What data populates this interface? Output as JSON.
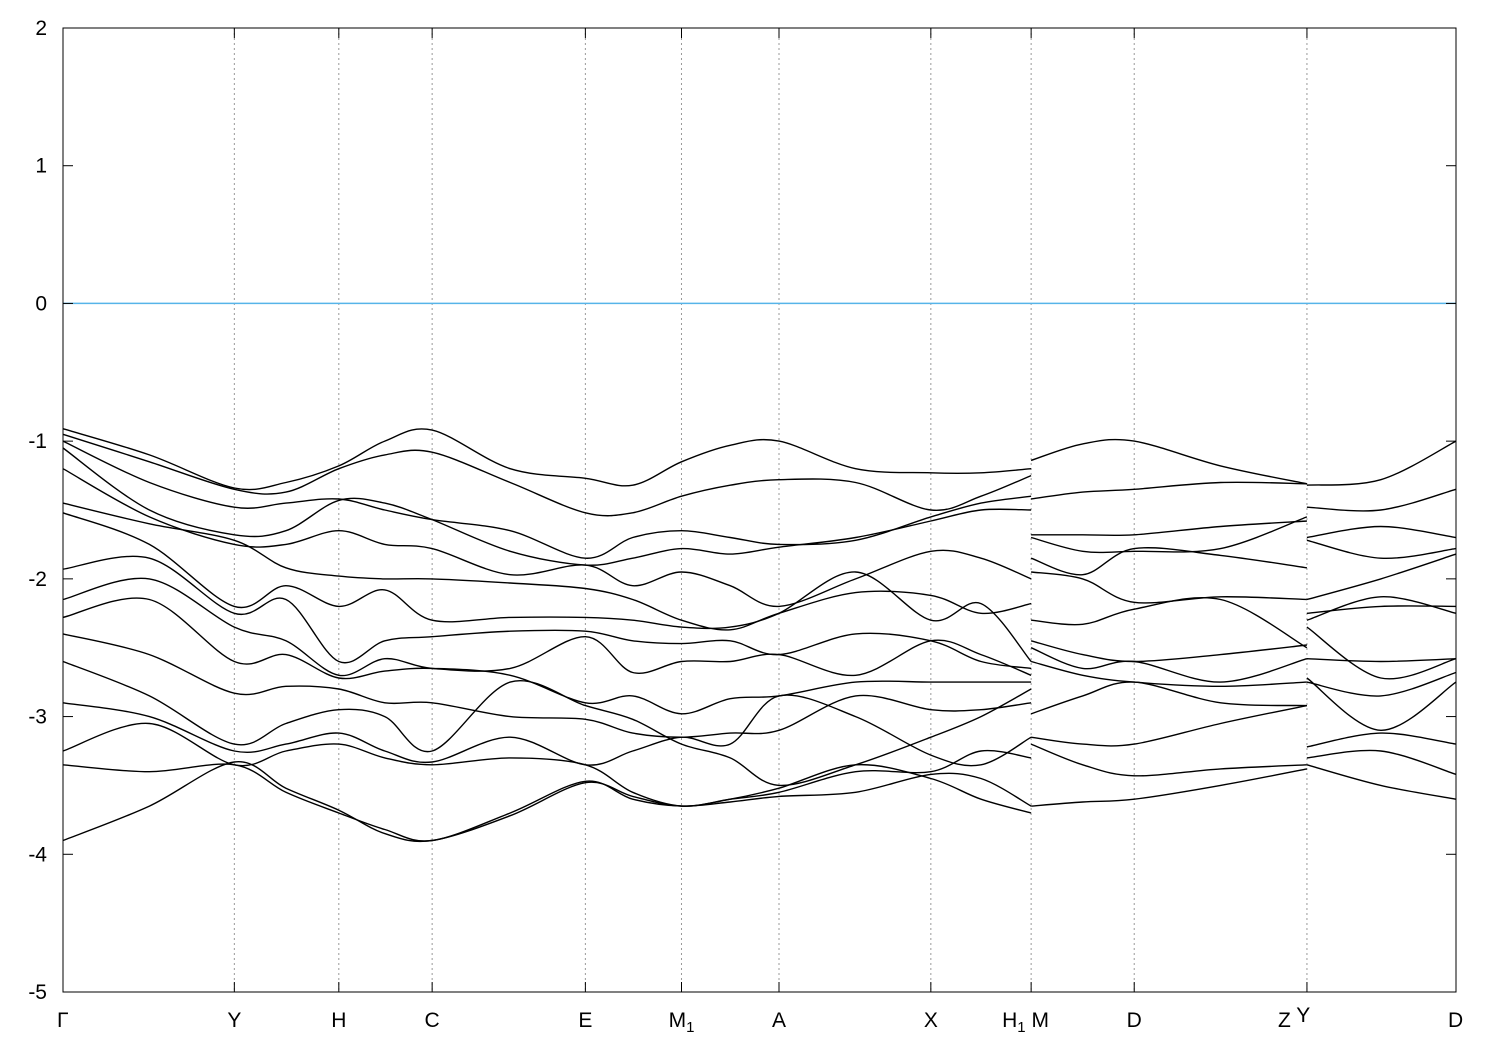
{
  "chart_data": {
    "type": "line",
    "title": "",
    "xlabel": "",
    "ylabel": "",
    "ylim": [
      -5,
      2
    ],
    "xlim": [
      0,
      1.0
    ],
    "yticks": [
      2,
      1,
      0,
      -1,
      -2,
      -3,
      -4,
      -5
    ],
    "grid": "vertical dotted lines at high-symmetry points",
    "reference_line": {
      "y": 0,
      "color": "#56b4e9"
    },
    "band_color": "#000000",
    "xticks": [
      {
        "k": 0.0,
        "label": "Γ",
        "sub": ""
      },
      {
        "k": 0.123,
        "label": "Y",
        "sub": ""
      },
      {
        "k": 0.198,
        "label": "H",
        "sub": ""
      },
      {
        "k": 0.265,
        "label": "C",
        "sub": ""
      },
      {
        "k": 0.375,
        "label": "E",
        "sub": ""
      },
      {
        "k": 0.444,
        "label": "M",
        "sub": "1"
      },
      {
        "k": 0.514,
        "label": "A",
        "sub": ""
      },
      {
        "k": 0.623,
        "label": "X",
        "sub": ""
      },
      {
        "k": 0.695,
        "label": "H",
        "sub": "1",
        "extra": "M"
      },
      {
        "k": 0.769,
        "label": "D",
        "sub": ""
      },
      {
        "k": 0.893,
        "label": "Z",
        "sub": "",
        "extra": "Y"
      },
      {
        "k": 1.0,
        "label": "D",
        "sub": ""
      }
    ],
    "segments": [
      {
        "k": [
          0,
          0.062,
          0.123,
          0.16,
          0.198,
          0.231,
          0.265,
          0.321,
          0.375,
          0.409,
          0.444,
          0.479,
          0.514,
          0.569,
          0.623,
          0.659,
          0.695
        ],
        "bands": [
          [
            -0.91,
            -1.1,
            -1.34,
            -1.3,
            -1.18,
            -1.0,
            -0.92,
            -1.2,
            -1.27,
            -1.32,
            -1.15,
            -1.03,
            -1.0,
            -1.2,
            -1.23,
            -1.23,
            -1.2
          ],
          [
            -0.95,
            -1.15,
            -1.35,
            -1.37,
            -1.2,
            -1.1,
            -1.08,
            -1.3,
            -1.52,
            -1.52,
            -1.4,
            -1.32,
            -1.28,
            -1.3,
            -1.5,
            -1.4,
            -1.25
          ],
          [
            -1.0,
            -1.3,
            -1.48,
            -1.45,
            -1.42,
            -1.5,
            -1.57,
            -1.65,
            -1.85,
            -1.7,
            -1.65,
            -1.7,
            -1.75,
            -1.72,
            -1.55,
            -1.45,
            -1.4
          ],
          [
            -1.05,
            -1.5,
            -1.68,
            -1.65,
            -1.43,
            -1.45,
            -1.57,
            -1.8,
            -1.9,
            -1.85,
            -1.78,
            -1.82,
            -1.77,
            -1.7,
            -1.58,
            -1.5,
            -1.5
          ],
          [
            -1.2,
            -1.55,
            -1.75,
            -1.75,
            -1.65,
            -1.75,
            -1.78,
            -1.97,
            -1.9,
            -2.05,
            -1.95,
            -2.05,
            -2.2,
            -2.0,
            -1.8,
            -1.85,
            -2.0
          ],
          [
            -1.45,
            -1.6,
            -1.72,
            -1.92,
            -1.98,
            -2.0,
            -2.0,
            -2.03,
            -2.07,
            -2.15,
            -2.3,
            -2.37,
            -2.25,
            -2.1,
            -2.12,
            -2.25,
            -2.18
          ],
          [
            -1.52,
            -1.75,
            -2.2,
            -2.05,
            -2.2,
            -2.08,
            -2.3,
            -2.28,
            -2.28,
            -2.3,
            -2.35,
            -2.35,
            -2.25,
            -1.95,
            -2.3,
            -2.18,
            -2.6
          ],
          [
            -1.93,
            -1.85,
            -2.25,
            -2.15,
            -2.6,
            -2.45,
            -2.42,
            -2.38,
            -2.38,
            -2.45,
            -2.47,
            -2.45,
            -2.55,
            -2.4,
            -2.45,
            -2.6,
            -2.65
          ],
          [
            -2.15,
            -2.0,
            -2.35,
            -2.45,
            -2.7,
            -2.58,
            -2.65,
            -2.65,
            -2.42,
            -2.68,
            -2.6,
            -2.6,
            -2.55,
            -2.7,
            -2.45,
            -2.55,
            -2.7
          ],
          [
            -2.28,
            -2.15,
            -2.6,
            -2.55,
            -2.72,
            -2.67,
            -2.65,
            -2.7,
            -2.9,
            -2.85,
            -2.98,
            -2.87,
            -2.85,
            -2.75,
            -2.75,
            -2.75,
            -2.75
          ],
          [
            -2.4,
            -2.55,
            -2.83,
            -2.78,
            -2.8,
            -2.9,
            -2.9,
            -3.0,
            -3.02,
            -3.12,
            -3.15,
            -3.12,
            -3.1,
            -2.85,
            -2.95,
            -2.95,
            -2.9
          ],
          [
            -2.6,
            -2.85,
            -3.2,
            -3.05,
            -2.95,
            -3.0,
            -3.25,
            -2.75,
            -2.92,
            -3.02,
            -3.2,
            -3.3,
            -3.5,
            -3.35,
            -3.15,
            -3.0,
            -2.8
          ],
          [
            -2.9,
            -3.0,
            -3.25,
            -3.2,
            -3.12,
            -3.25,
            -3.33,
            -3.15,
            -3.35,
            -3.25,
            -3.15,
            -3.2,
            -2.85,
            -3.0,
            -3.28,
            -3.35,
            -3.15
          ],
          [
            -3.25,
            -3.05,
            -3.35,
            -3.25,
            -3.2,
            -3.3,
            -3.35,
            -3.3,
            -3.35,
            -3.55,
            -3.65,
            -3.6,
            -3.55,
            -3.4,
            -3.4,
            -3.25,
            -3.3
          ],
          [
            -3.35,
            -3.4,
            -3.35,
            -3.55,
            -3.7,
            -3.82,
            -3.9,
            -3.7,
            -3.47,
            -3.6,
            -3.65,
            -3.62,
            -3.58,
            -3.55,
            -3.42,
            -3.45,
            -3.65
          ],
          [
            -3.9,
            -3.65,
            -3.33,
            -3.52,
            -3.68,
            -3.85,
            -3.9,
            -3.72,
            -3.48,
            -3.58,
            -3.65,
            -3.6,
            -3.52,
            -3.35,
            -3.45,
            -3.6,
            -3.7
          ]
        ]
      },
      {
        "k": [
          0.695,
          0.732,
          0.769,
          0.831,
          0.893
        ],
        "bands": [
          [
            -1.14,
            -1.02,
            -1.0,
            -1.18,
            -1.31
          ],
          [
            -1.42,
            -1.37,
            -1.35,
            -1.3,
            -1.31
          ],
          [
            -1.68,
            -1.68,
            -1.68,
            -1.62,
            -1.58
          ],
          [
            -1.7,
            -1.8,
            -1.8,
            -1.78,
            -1.55
          ],
          [
            -1.85,
            -1.97,
            -1.78,
            -1.83,
            -1.92
          ],
          [
            -1.95,
            -2.0,
            -2.17,
            -2.13,
            -2.15
          ],
          [
            -2.3,
            -2.33,
            -2.22,
            -2.15,
            -2.5
          ],
          [
            -2.45,
            -2.55,
            -2.6,
            -2.55,
            -2.48
          ],
          [
            -2.5,
            -2.65,
            -2.6,
            -2.75,
            -2.58
          ],
          [
            -2.6,
            -2.7,
            -2.75,
            -2.78,
            -2.75
          ],
          [
            -2.98,
            -2.85,
            -2.75,
            -2.9,
            -2.92
          ],
          [
            -3.15,
            -3.2,
            -3.2,
            -3.05,
            -2.92
          ],
          [
            -3.2,
            -3.35,
            -3.43,
            -3.38,
            -3.35
          ],
          [
            -3.65,
            -3.62,
            -3.6,
            -3.5,
            -3.38
          ]
        ]
      },
      {
        "k": [
          0.893,
          0.946,
          1.0
        ],
        "bands": [
          [
            -1.32,
            -1.28,
            -1.0
          ],
          [
            -1.48,
            -1.5,
            -1.35
          ],
          [
            -1.7,
            -1.62,
            -1.7
          ],
          [
            -1.72,
            -1.85,
            -1.78
          ],
          [
            -2.15,
            -2.0,
            -1.82
          ],
          [
            -2.25,
            -2.2,
            -2.2
          ],
          [
            -2.3,
            -2.13,
            -2.25
          ],
          [
            -2.35,
            -2.72,
            -2.58
          ],
          [
            -2.58,
            -2.6,
            -2.58
          ],
          [
            -2.75,
            -2.85,
            -2.68
          ],
          [
            -2.72,
            -3.1,
            -2.75
          ],
          [
            -3.22,
            -3.12,
            -3.2
          ],
          [
            -3.3,
            -3.25,
            -3.42
          ],
          [
            -3.35,
            -3.5,
            -3.6
          ]
        ]
      }
    ]
  }
}
